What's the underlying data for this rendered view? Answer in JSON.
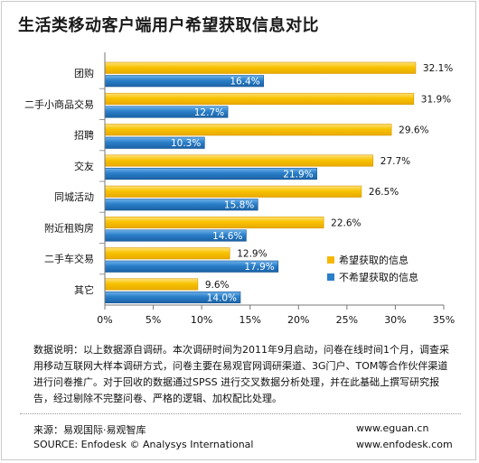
{
  "title": "生活类移动客户端用户希望获取信息对比",
  "chart_data": {
    "type": "bar",
    "orientation": "horizontal",
    "categories": [
      "团购",
      "二手小商品交易",
      "招聘",
      "交友",
      "同城活动",
      "附近租购房",
      "二手车交易",
      "其它"
    ],
    "series": [
      {
        "name": "希望获取的信息",
        "color": "#f5b800",
        "values": [
          32.1,
          31.9,
          29.6,
          27.7,
          26.5,
          22.6,
          12.9,
          9.6
        ]
      },
      {
        "name": "不希望获取的信息",
        "color": "#2a7fc8",
        "values": [
          16.4,
          12.7,
          10.3,
          21.9,
          15.8,
          14.6,
          17.9,
          14.0
        ]
      }
    ],
    "value_labels": [
      [
        "32.1%",
        "31.9%",
        "29.6%",
        "27.7%",
        "26.5%",
        "22.6%",
        "12.9%",
        "9.6%"
      ],
      [
        "16.4%",
        "12.7%",
        "10.3%",
        "21.9%",
        "15.8%",
        "14.6%",
        "17.9%",
        "14.0%"
      ]
    ],
    "xlim": [
      0,
      35
    ],
    "xticks": [
      "0%",
      "5%",
      "10%",
      "15%",
      "20%",
      "25%",
      "30%",
      "35%"
    ],
    "grid": false,
    "legend_position": "right"
  },
  "note": "数据说明：以上数据源自调研。本次调研时间为2011年9月启动，问卷在线时间1个月，调查采用移动互联网大样本调研方式，问卷主要在易观官网调研渠道、3G门户、TOM等合作伙伴渠道进行问卷推广。对于回收的数据通过SPSS 进行交叉数据分析处理，并在此基础上撰写研究报告，经过剔除不完整问卷、严格的逻辑、加权配比处理。",
  "source": {
    "cn": "来源：易观国际·易观智库",
    "en": "SOURCE: Enfodesk © Analysys International",
    "url1": "www.eguan.cn",
    "url2": "www.enfodesk.com"
  }
}
